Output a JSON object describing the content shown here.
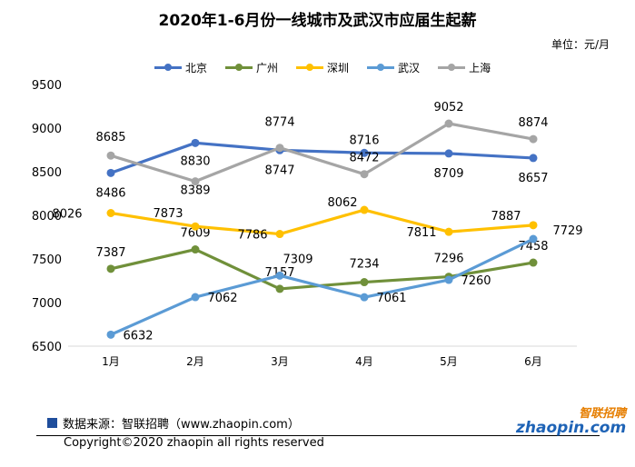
{
  "chart_data": {
    "type": "line",
    "title": "2020年1-6月份一线城市及武汉市应届生起薪",
    "unit": "单位：元/月",
    "categories": [
      "1月",
      "2月",
      "3月",
      "4月",
      "5月",
      "6月"
    ],
    "ylim": [
      6500,
      9500
    ],
    "yticks": [
      6500,
      7000,
      7500,
      8000,
      8500,
      9000,
      9500
    ],
    "grid": false,
    "legend": "top",
    "series": [
      {
        "name": "北京",
        "color": "#4472c4",
        "values": [
          8486,
          8830,
          8747,
          8716,
          8709,
          8657
        ]
      },
      {
        "name": "广州",
        "color": "#70903a",
        "values": [
          7387,
          7609,
          7157,
          7234,
          7296,
          7458
        ]
      },
      {
        "name": "深圳",
        "color": "#ffc000",
        "values": [
          8026,
          7873,
          7786,
          8062,
          7811,
          7887
        ]
      },
      {
        "name": "武汉",
        "color": "#5b9bd5",
        "values": [
          6632,
          7062,
          7309,
          7061,
          7260,
          7729
        ]
      },
      {
        "name": "上海",
        "color": "#a5a5a5",
        "values": [
          8685,
          8389,
          8774,
          8472,
          9052,
          8874
        ]
      }
    ]
  },
  "footer": {
    "source": "数据来源：智联招聘（www.zhaopin.com）",
    "copyright": "Copyright©2020 zhaopin all rights reserved",
    "logo_cn": "智联招聘",
    "logo_en": "zhaopin.com"
  }
}
